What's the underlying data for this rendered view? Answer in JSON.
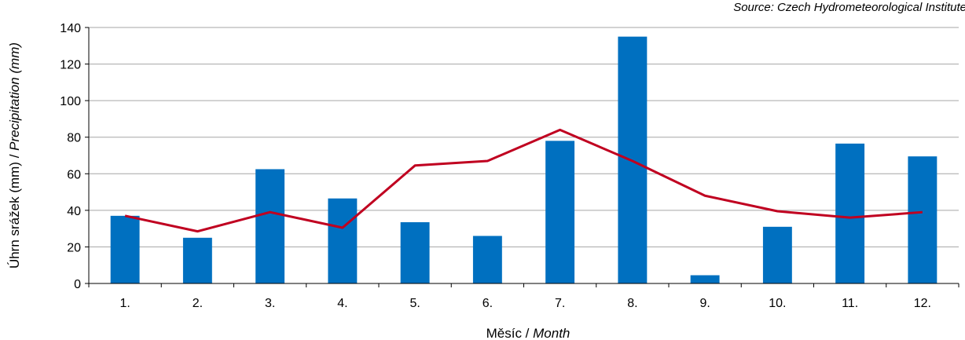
{
  "source_note": "Source: Czech Hydrometeorological Institute",
  "chart_data": {
    "type": "bar",
    "categories": [
      "1.",
      "2.",
      "3.",
      "4.",
      "5.",
      "6.",
      "7.",
      "8.",
      "9.",
      "10.",
      "11.",
      "12."
    ],
    "series": [
      {
        "type": "bar",
        "values": [
          37,
          25,
          62.5,
          46.5,
          33.5,
          26,
          78,
          135,
          4.5,
          31,
          76.5,
          69.5
        ],
        "color": "#0070C0"
      },
      {
        "type": "line",
        "values": [
          37,
          28.5,
          39,
          30.5,
          64.5,
          67,
          84,
          67,
          48,
          39.5,
          36,
          39
        ],
        "color": "#C00020"
      }
    ],
    "xlabel": {
      "main": "Měsíc",
      "sep": " / ",
      "italic": "Month"
    },
    "ylabel": {
      "main": "Úhrn srážek (mm)",
      "sep": " / ",
      "italic": "Precipitation (mm)"
    },
    "ylim": [
      0,
      140
    ],
    "yticks": [
      0,
      20,
      40,
      60,
      80,
      100,
      120,
      140
    ],
    "grid": true,
    "gridColor": "#A6A6A6"
  }
}
